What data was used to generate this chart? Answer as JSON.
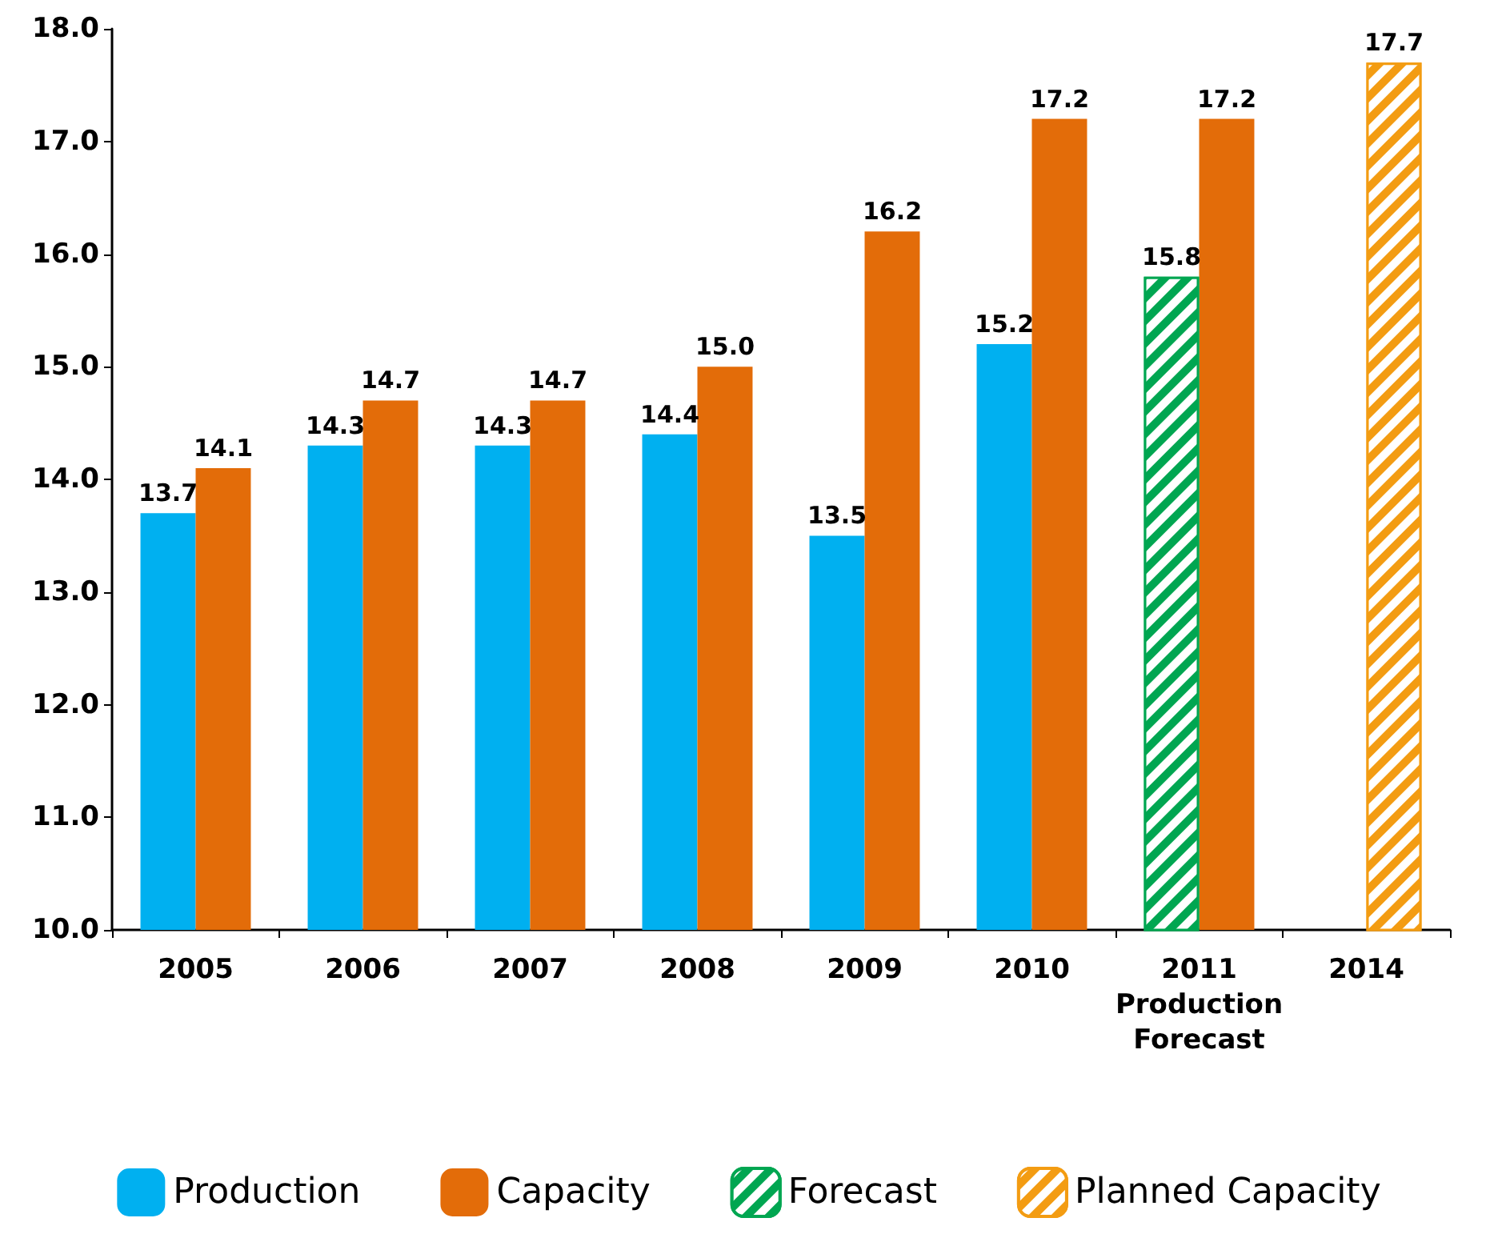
{
  "chart_data": {
    "type": "bar",
    "categories": [
      "2005",
      "2006",
      "2007",
      "2008",
      "2009",
      "2010",
      "2011\nProduction\nForecast",
      "2014"
    ],
    "series": [
      {
        "name": "Production",
        "color": "#00b0f0",
        "values": [
          13.7,
          14.3,
          14.3,
          14.4,
          13.5,
          15.2,
          null,
          null
        ],
        "value_labels": [
          "13.7",
          "14.3",
          "14.3",
          "14.4",
          "13.5",
          "15.2",
          null,
          null
        ]
      },
      {
        "name": "Capacity",
        "color": "#e36c09",
        "values": [
          14.1,
          14.7,
          14.7,
          15.0,
          16.2,
          17.2,
          17.2,
          null
        ],
        "value_labels": [
          "14.1",
          "14.7",
          "14.7",
          "15.0",
          "16.2",
          "17.2",
          "17.2",
          null
        ]
      },
      {
        "name": "Forecast",
        "color": "#00a651",
        "values": [
          null,
          null,
          null,
          null,
          null,
          null,
          15.8,
          null
        ],
        "value_labels": [
          null,
          null,
          null,
          null,
          null,
          null,
          "15.8",
          null
        ]
      },
      {
        "name": "Planned Capacity",
        "color": "#f39c12",
        "values": [
          null,
          null,
          null,
          null,
          null,
          null,
          null,
          17.7
        ],
        "value_labels": [
          null,
          null,
          null,
          null,
          null,
          null,
          null,
          "17.7"
        ]
      }
    ],
    "ylim": [
      10,
      18
    ],
    "yticks": [
      {
        "value": 10,
        "label": "10.0"
      },
      {
        "value": 11,
        "label": "11.0"
      },
      {
        "value": 12,
        "label": "12.0"
      },
      {
        "value": 13,
        "label": "13.0"
      },
      {
        "value": 14,
        "label": "14.0"
      },
      {
        "value": 15,
        "label": "15.0"
      },
      {
        "value": 16,
        "label": "16.0"
      },
      {
        "value": 17,
        "label": "17.0"
      },
      {
        "value": 18,
        "label": "18.0"
      }
    ],
    "grid": false,
    "legend": "bottom"
  }
}
